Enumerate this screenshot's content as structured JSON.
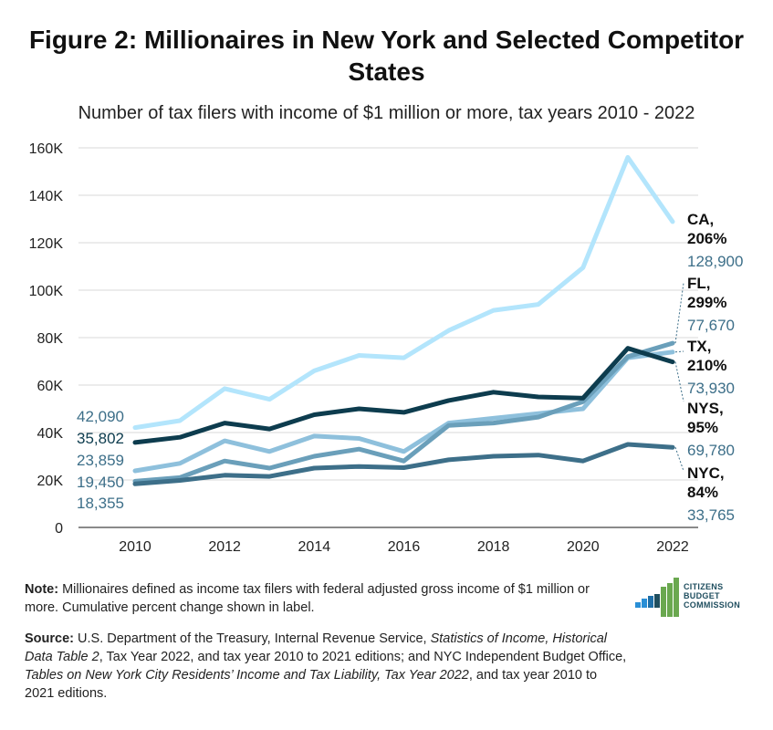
{
  "title": "Figure 2: Millionaires in New York and Selected Competitor States",
  "subtitle": "Number of tax filers with income of $1 million or more, tax years 2010 - 2022",
  "chart_data": {
    "type": "line",
    "x": [
      2010,
      2011,
      2012,
      2013,
      2014,
      2015,
      2016,
      2017,
      2018,
      2019,
      2020,
      2021,
      2022
    ],
    "xticks": [
      "2010",
      "2012",
      "2014",
      "2016",
      "2018",
      "2020",
      "2022"
    ],
    "yticks": [
      "0",
      "20K",
      "40K",
      "60K",
      "80K",
      "100K",
      "120K",
      "140K",
      "160K"
    ],
    "ylim": [
      0,
      160000
    ],
    "series": [
      {
        "key": "ca",
        "color": "#b3e5fc",
        "values": [
          42090,
          45000,
          58500,
          54000,
          66000,
          72500,
          71500,
          83000,
          91500,
          94000,
          109500,
          156000,
          128900
        ],
        "start_label": "42,090",
        "name_label": "CA,",
        "pct_label": "206%",
        "end_label": "128,900"
      },
      {
        "key": "fl",
        "color": "#6a9fba",
        "values": [
          19450,
          21000,
          28000,
          25000,
          30000,
          33000,
          28000,
          43000,
          44000,
          46500,
          53000,
          72000,
          77670
        ],
        "start_label": "19,450",
        "name_label": "FL,",
        "pct_label": "299%",
        "end_label": "77,670"
      },
      {
        "key": "tx",
        "color": "#8ec0dc",
        "values": [
          23859,
          27000,
          36500,
          32000,
          38500,
          37500,
          32000,
          44000,
          46000,
          48000,
          50000,
          71500,
          73930
        ],
        "start_label": "23,859",
        "name_label": "TX,",
        "pct_label": "210%",
        "end_label": "73,930"
      },
      {
        "key": "nys",
        "color": "#0d3c4e",
        "values": [
          35802,
          38000,
          44000,
          41500,
          47500,
          50000,
          48500,
          53500,
          57000,
          55000,
          54500,
          75500,
          69780
        ],
        "start_label": "35,802",
        "name_label": "NYS,",
        "pct_label": "95%",
        "end_label": "69,780"
      },
      {
        "key": "nyc",
        "color": "#3d6f89",
        "values": [
          18355,
          19800,
          22000,
          21500,
          25000,
          25700,
          25200,
          28500,
          30000,
          30500,
          28000,
          35000,
          33765
        ],
        "start_label": "18,355",
        "name_label": "NYC,",
        "pct_label": "84%",
        "end_label": "33,765"
      }
    ],
    "grid": "horizontal"
  },
  "note": {
    "label": "Note:",
    "text": " Millionaires defined as income tax filers with federal adjusted gross income of $1 million or more. Cumulative percent change shown in label."
  },
  "source": {
    "label": "Source:",
    "t1": " U.S. Department of the Treasury, Internal Revenue Service, ",
    "i1": "Statistics of Income, Historical Data Table 2",
    "t2": ", Tax Year 2022, and tax year 2010 to 2021 editions; and NYC Independent Budget Office, ",
    "i2": "Tables on New York City Residents’ Income and Tax Liability, Tax Year 2022",
    "t3": ", and tax year 2010 to 2021 editions."
  },
  "logo": {
    "line1": "CITIZENS",
    "line2": "BUDGET",
    "line3": "COMMISSION",
    "color": "#1f4e5f"
  }
}
